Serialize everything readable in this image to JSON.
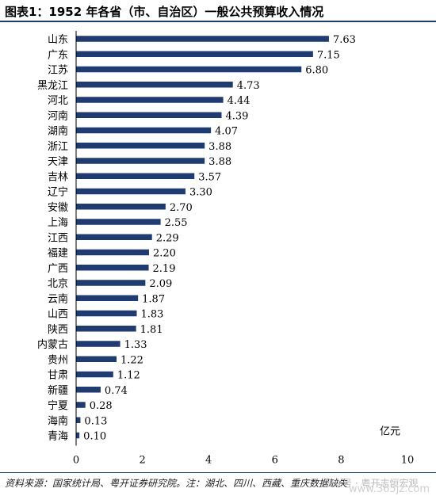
{
  "title": "图表1：1952 年各省（市、自治区）一般公共预算收入情况",
  "source": "资料来源：国家统计局、粤开证券研究院。注：湖北、四川、西藏、重庆数据缺失",
  "watermark": {
    "handle": "公众号 · 粤开志恒宏观",
    "site": "www.365jz.com"
  },
  "colors": {
    "bar": "#1f3b73",
    "rule": "#1f3b73"
  },
  "chart_data": {
    "type": "bar",
    "orientation": "horizontal",
    "categories": [
      "山东",
      "广东",
      "江苏",
      "黑龙江",
      "河北",
      "河南",
      "湖南",
      "浙江",
      "天津",
      "吉林",
      "辽宁",
      "安徽",
      "上海",
      "江西",
      "福建",
      "广西",
      "北京",
      "云南",
      "山西",
      "陕西",
      "内蒙古",
      "贵州",
      "甘肃",
      "新疆",
      "宁夏",
      "海南",
      "青海"
    ],
    "values": [
      7.63,
      7.15,
      6.8,
      4.73,
      4.44,
      4.39,
      4.07,
      3.88,
      3.88,
      3.57,
      3.3,
      2.7,
      2.55,
      2.29,
      2.2,
      2.19,
      2.09,
      1.87,
      1.83,
      1.81,
      1.33,
      1.22,
      1.12,
      0.74,
      0.28,
      0.13,
      0.1
    ],
    "value_labels": [
      "7.63",
      "7.15",
      "6.80",
      "4.73",
      "4.44",
      "4.39",
      "4.07",
      "3.88",
      "3.88",
      "3.57",
      "3.30",
      "2.70",
      "2.55",
      "2.29",
      "2.20",
      "2.19",
      "2.09",
      "1.87",
      "1.83",
      "1.81",
      "1.33",
      "1.22",
      "1.12",
      "0.74",
      "0.28",
      "0.13",
      "0.10"
    ],
    "unit_label": "亿元",
    "xlim": [
      0,
      10
    ],
    "xticks": [
      0,
      2,
      4,
      6,
      8,
      10
    ],
    "grid": false,
    "legend": "none"
  }
}
